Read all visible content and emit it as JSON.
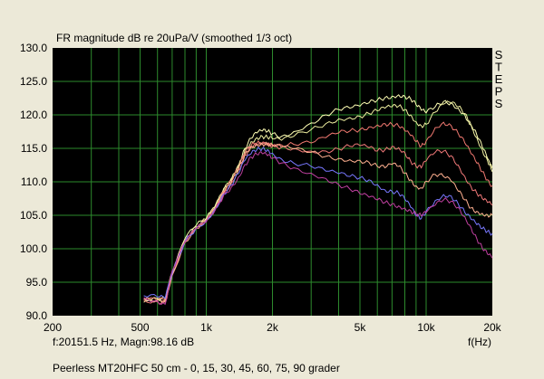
{
  "chart_data": {
    "type": "line",
    "title": "FR magnitude dB re 20uPa/V (smoothed  1/3 oct)",
    "xlabel": "f(Hz)",
    "xscale": "log",
    "xlim": [
      200,
      20000
    ],
    "ylim": [
      90,
      130
    ],
    "grid": true,
    "x_tick_labels": [
      {
        "value": 200,
        "label": "200"
      },
      {
        "value": 500,
        "label": "500"
      },
      {
        "value": 1000,
        "label": "1k"
      },
      {
        "value": 2000,
        "label": "2k"
      },
      {
        "value": 5000,
        "label": "5k"
      },
      {
        "value": 10000,
        "label": "10k"
      },
      {
        "value": 20000,
        "label": "20k"
      }
    ],
    "y_ticks": [
      90,
      95,
      100,
      105,
      110,
      115,
      120,
      125,
      130
    ],
    "y_tick_labels": [
      "90.0",
      "95.0",
      "100.0",
      "105.0",
      "110.0",
      "115.0",
      "120.0",
      "125.0",
      "130.0"
    ],
    "side_label": [
      "S",
      "T",
      "E",
      "P",
      "S"
    ],
    "cursor_readout": "f:20151.5 Hz, Magn:98.16 dB",
    "caption": "Peerless MT20HFC 50 cm - 0, 15, 30, 45, 60, 75, 90 grader",
    "x": [
      520,
      600,
      650,
      700,
      800,
      900,
      1000,
      1100,
      1200,
      1300,
      1400,
      1500,
      1600,
      1700,
      1800,
      1900,
      2000,
      2200,
      2500,
      3000,
      3500,
      4000,
      4500,
      5000,
      5500,
      6000,
      6500,
      7000,
      7500,
      8000,
      8500,
      9000,
      9500,
      10000,
      11000,
      12000,
      13000,
      14000,
      15000,
      16000,
      17000,
      18000,
      19000,
      20000
    ],
    "series": [
      {
        "color": "#ffffb4",
        "values": [
          92.5,
          92.6,
          92.5,
          96.5,
          101.5,
          103.5,
          104.5,
          106.5,
          109,
          110.5,
          112.5,
          115,
          116.5,
          117.3,
          117.6,
          117.5,
          117.2,
          116.8,
          117.5,
          118.8,
          120,
          120.8,
          121,
          121.3,
          121.8,
          122.2,
          122.6,
          122.8,
          123,
          122.8,
          122.4,
          121.5,
          120.7,
          120.3,
          121.2,
          122,
          121.8,
          121,
          120,
          118.5,
          117,
          115.2,
          113.5,
          111.5
        ]
      },
      {
        "color": "#f0f0a0",
        "values": [
          92,
          92.5,
          92.4,
          96.2,
          101.4,
          103.3,
          104.4,
          106.3,
          108.8,
          110.3,
          112.3,
          114.8,
          116,
          116.6,
          116.8,
          116.6,
          116.4,
          116.2,
          116.8,
          117.8,
          118.7,
          119.4,
          119.6,
          119.8,
          120.2,
          120.6,
          121,
          121.2,
          121.3,
          120.8,
          120,
          119,
          118.4,
          118.6,
          120.4,
          121.6,
          121.8,
          121.2,
          120.2,
          118.5,
          116.6,
          114.8,
          113.2,
          112
        ]
      },
      {
        "color": "#f07870",
        "values": [
          92.5,
          92.3,
          92.4,
          96.4,
          101.2,
          103.2,
          104.3,
          106.1,
          108.6,
          110.1,
          112,
          114.3,
          115.4,
          115.8,
          115.9,
          115.8,
          115.6,
          115.5,
          115.6,
          115.8,
          116.6,
          117.3,
          117.6,
          117.8,
          118.2,
          118.5,
          118.7,
          118.6,
          118.3,
          117.6,
          116.9,
          116,
          115.3,
          116.1,
          118.1,
          118.9,
          118.4,
          117.2,
          115.8,
          114.2,
          112.8,
          111.5,
          110.3,
          109.4
        ]
      },
      {
        "color": "#f07878",
        "values": [
          92.3,
          92.1,
          92,
          96,
          100.9,
          103,
          104.1,
          105.9,
          108.3,
          109.8,
          111.7,
          114,
          115.2,
          115.5,
          115.6,
          115.5,
          115.3,
          115.2,
          115,
          114.6,
          114.6,
          114.9,
          115.3,
          115.4,
          115.1,
          114.6,
          114.8,
          115.3,
          115.1,
          114.4,
          113.1,
          112.3,
          112.1,
          113.1,
          114.4,
          114.6,
          113.9,
          112.5,
          110.8,
          109.3,
          108.3,
          107.5,
          106.9,
          106.5
        ]
      },
      {
        "color": "#ffb090",
        "values": [
          92.4,
          92.3,
          92.2,
          96.1,
          101,
          103.1,
          104.2,
          106,
          108.4,
          109.9,
          111.8,
          114.1,
          115.3,
          115.6,
          115.7,
          115.6,
          115.4,
          115.2,
          114.9,
          114.4,
          113.8,
          113.5,
          113.3,
          113.2,
          112.9,
          112.3,
          112.1,
          112.6,
          112.3,
          111.3,
          110.3,
          109.4,
          109.1,
          110.1,
          111.1,
          110.8,
          110.1,
          108.6,
          107.3,
          106.1,
          105.6,
          105.3,
          105.1,
          105
        ]
      },
      {
        "color": "#7878ff",
        "values": [
          93,
          92.8,
          92.6,
          96.3,
          101.1,
          103.1,
          104.2,
          106,
          108.2,
          109.5,
          111.2,
          113.2,
          114.2,
          114.8,
          115,
          114.8,
          114.3,
          113.4,
          112.8,
          112.3,
          111.6,
          111.2,
          110.8,
          110.6,
          110.3,
          109.6,
          108.8,
          108.6,
          108.3,
          107.4,
          106.2,
          104.9,
          104.5,
          105.6,
          107.2,
          108.1,
          107.9,
          106.7,
          105.4,
          104.4,
          103.6,
          103,
          102.6,
          102.3
        ]
      },
      {
        "color": "#c040a0",
        "values": [
          92.7,
          92.2,
          91.7,
          96.7,
          101,
          103,
          104,
          105.8,
          108,
          109.2,
          110.7,
          112.6,
          113.7,
          114.1,
          114.2,
          113.9,
          113.5,
          112.8,
          112.1,
          111.3,
          110.5,
          109.6,
          108.9,
          108.2,
          107.7,
          107.3,
          106.9,
          106.7,
          106.4,
          106.1,
          105.7,
          105.2,
          104.9,
          105.4,
          106.5,
          107.3,
          107.1,
          106.2,
          104.8,
          103.2,
          101.5,
          100.1,
          99.2,
          98.6
        ]
      }
    ]
  }
}
